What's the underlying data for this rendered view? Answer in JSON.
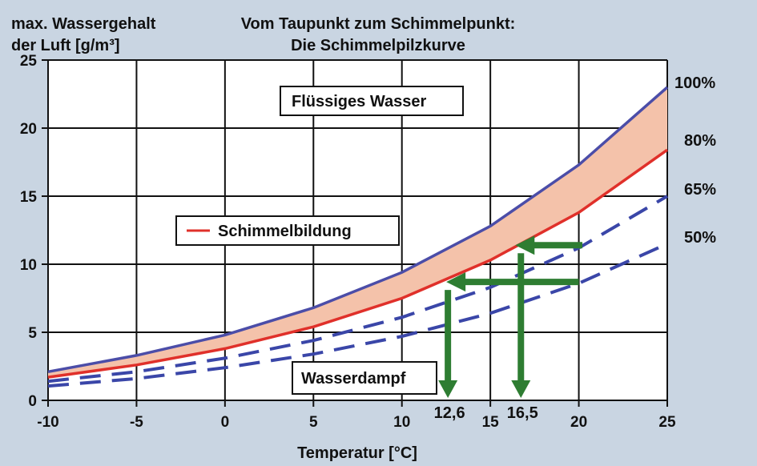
{
  "chart_data": {
    "type": "line",
    "title": "Vom Taupunkt zum Schimmelpunkt:",
    "subtitle": "Die Schimmelpilzkurve",
    "ylabel_line1": "max. Wassergehalt",
    "ylabel_line2": "der Luft [g/m³]",
    "xlabel": "Temperatur [°C]",
    "xlim": [
      -10,
      25
    ],
    "ylim": [
      0,
      25
    ],
    "grid": true,
    "x": [
      -10,
      -5,
      0,
      5,
      10,
      15,
      20,
      25
    ],
    "xticks": [
      "-10",
      "-5",
      "0",
      "5",
      "10",
      "15",
      "20",
      "25"
    ],
    "yticks": [
      "0",
      "5",
      "10",
      "15",
      "20",
      "25"
    ],
    "series": [
      {
        "name": "100%",
        "values": [
          2.1,
          3.3,
          4.8,
          6.8,
          9.4,
          12.8,
          17.3,
          23.0
        ],
        "color": "#4b4da8",
        "style": "solid"
      },
      {
        "name": "80%",
        "values": [
          1.7,
          2.6,
          3.8,
          5.4,
          7.5,
          10.3,
          13.8,
          18.4
        ],
        "color": "#e0302a",
        "style": "solid"
      },
      {
        "name": "65%",
        "values": [
          1.4,
          2.1,
          3.1,
          4.4,
          6.1,
          8.3,
          11.2,
          15.0
        ],
        "color": "#3a46a8",
        "style": "dashed"
      },
      {
        "name": "50%",
        "values": [
          1.05,
          1.6,
          2.4,
          3.4,
          4.7,
          6.4,
          8.6,
          11.5
        ],
        "color": "#3a46a8",
        "style": "dashed"
      }
    ],
    "band_fill": "#f4c2aa",
    "annotations": {
      "liquid": "Flüssiges Wasser",
      "mold": "Schimmelbildung",
      "vapor": "Wasserdampf"
    },
    "arrows": [
      {
        "label": "12,6",
        "from": [
          20,
          8.7
        ],
        "corner_x": 12.6,
        "color": "#2e7d32"
      },
      {
        "label": "16,5",
        "from": [
          20.2,
          11.4
        ],
        "corner_x": 16.5,
        "color": "#2e7d32"
      }
    ],
    "right_labels": [
      "100%",
      "80%",
      "65%",
      "50%"
    ]
  }
}
